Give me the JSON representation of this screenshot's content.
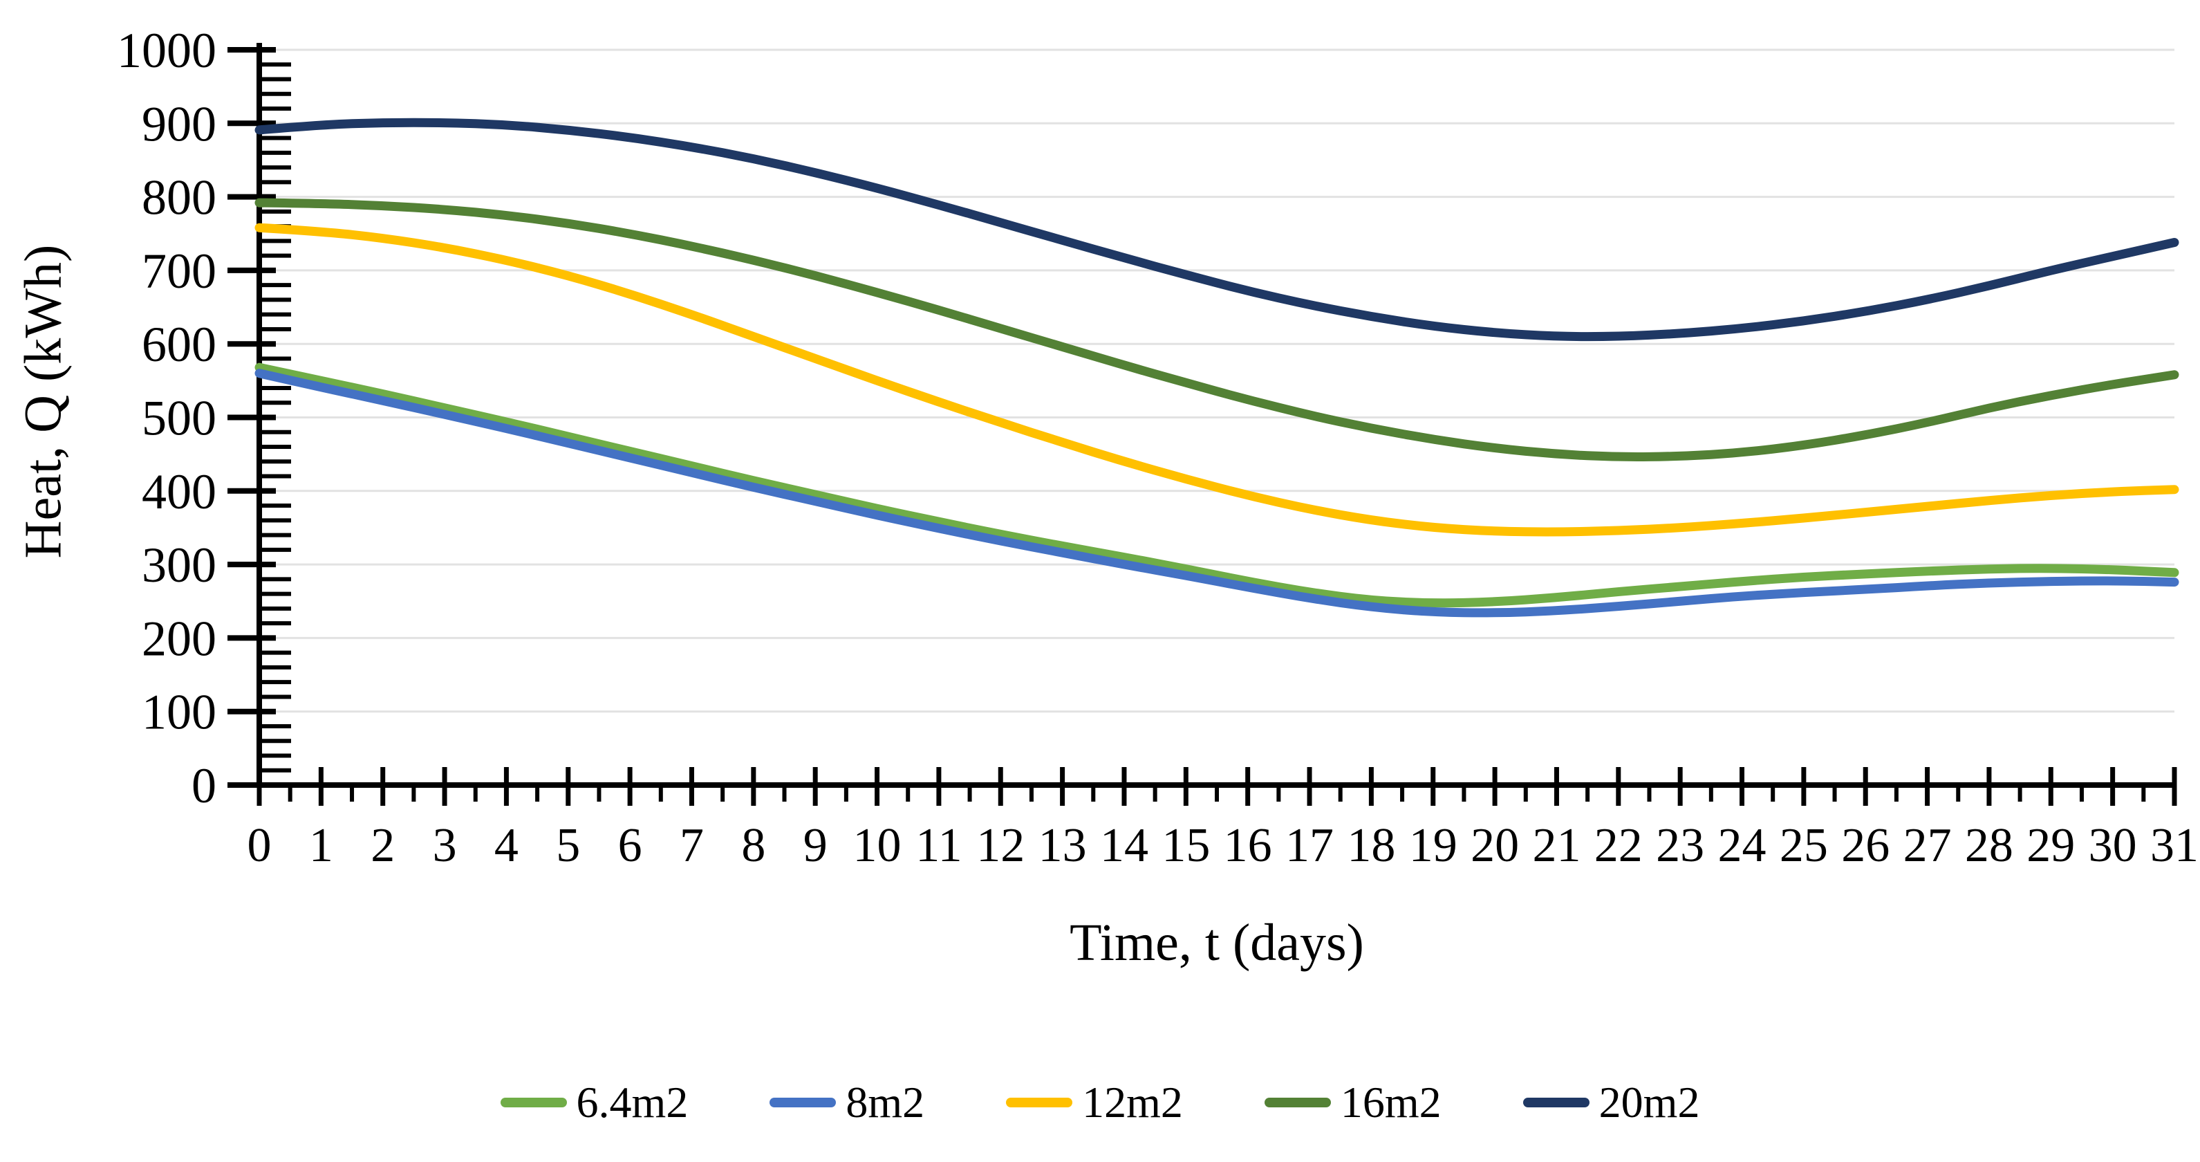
{
  "chart_data": {
    "type": "line",
    "title": "",
    "xlabel": "Time, t (days)",
    "ylabel": "Heat, Q (kWh)",
    "x": [
      0,
      1,
      2,
      3,
      4,
      5,
      6,
      7,
      8,
      9,
      10,
      11,
      12,
      13,
      14,
      15,
      16,
      17,
      18,
      19,
      20,
      21,
      22,
      23,
      24,
      25,
      26,
      27,
      28,
      29,
      30,
      31
    ],
    "xlim": [
      0,
      31
    ],
    "ylim": [
      0,
      1000
    ],
    "y_major_step": 100,
    "x_major_step": 1,
    "y_minor_step": 20,
    "x_minor_step": 0.5,
    "grid": "horizontal-major-only",
    "legend_position": "bottom",
    "y_tick_labels": [
      "0",
      "100",
      "200",
      "300",
      "400",
      "500",
      "600",
      "700",
      "800",
      "900",
      "1000"
    ],
    "x_tick_labels": [
      "0",
      "1",
      "2",
      "3",
      "4",
      "5",
      "6",
      "7",
      "8",
      "9",
      "10",
      "11",
      "12",
      "13",
      "14",
      "15",
      "16",
      "17",
      "18",
      "19",
      "20",
      "21",
      "22",
      "23",
      "24",
      "25",
      "26",
      "27",
      "28",
      "29",
      "30",
      "31"
    ],
    "series": [
      {
        "name": "6.4m2",
        "color": "#70AD47",
        "values": [
          568,
          550,
          532,
          513,
          494,
          474,
          454,
          434,
          414,
          395,
          376,
          358,
          341,
          325,
          310,
          294,
          277,
          262,
          251,
          247,
          249,
          255,
          263,
          270,
          277,
          283,
          287,
          291,
          294,
          295,
          293,
          289
        ]
      },
      {
        "name": "8m2",
        "color": "#4472C4",
        "values": [
          560,
          541,
          523,
          504,
          485,
          465,
          445,
          425,
          405,
          386,
          367,
          349,
          332,
          316,
          300,
          285,
          269,
          254,
          242,
          235,
          234,
          237,
          243,
          250,
          257,
          262,
          266,
          271,
          275,
          277,
          278,
          276
        ]
      },
      {
        "name": "12m2",
        "color": "#FFC000",
        "values": [
          758,
          753,
          744,
          731,
          714,
          693,
          668,
          640,
          610,
          580,
          550,
          521,
          493,
          466,
          440,
          416,
          394,
          375,
          360,
          350,
          345,
          344,
          346,
          350,
          356,
          363,
          371,
          379,
          387,
          394,
          399,
          402
        ]
      },
      {
        "name": "16m2",
        "color": "#538135",
        "values": [
          792,
          791,
          788,
          783,
          775,
          764,
          750,
          733,
          714,
          693,
          670,
          646,
          621,
          596,
          571,
          547,
          524,
          503,
          485,
          470,
          458,
          450,
          446,
          447,
          452,
          462,
          476,
          493,
          513,
          530,
          545,
          558
        ]
      },
      {
        "name": "20m2",
        "color": "#1F3864",
        "values": [
          891,
          898,
          901,
          901,
          898,
          891,
          881,
          868,
          852,
          833,
          812,
          789,
          765,
          741,
          717,
          694,
          672,
          653,
          637,
          624,
          615,
          610,
          610,
          614,
          621,
          631,
          644,
          660,
          679,
          700,
          719,
          738
        ]
      }
    ],
    "style_colors": {
      "gridline": "#E2E2E2",
      "axis": "#000000",
      "background": "#FFFFFF"
    }
  }
}
